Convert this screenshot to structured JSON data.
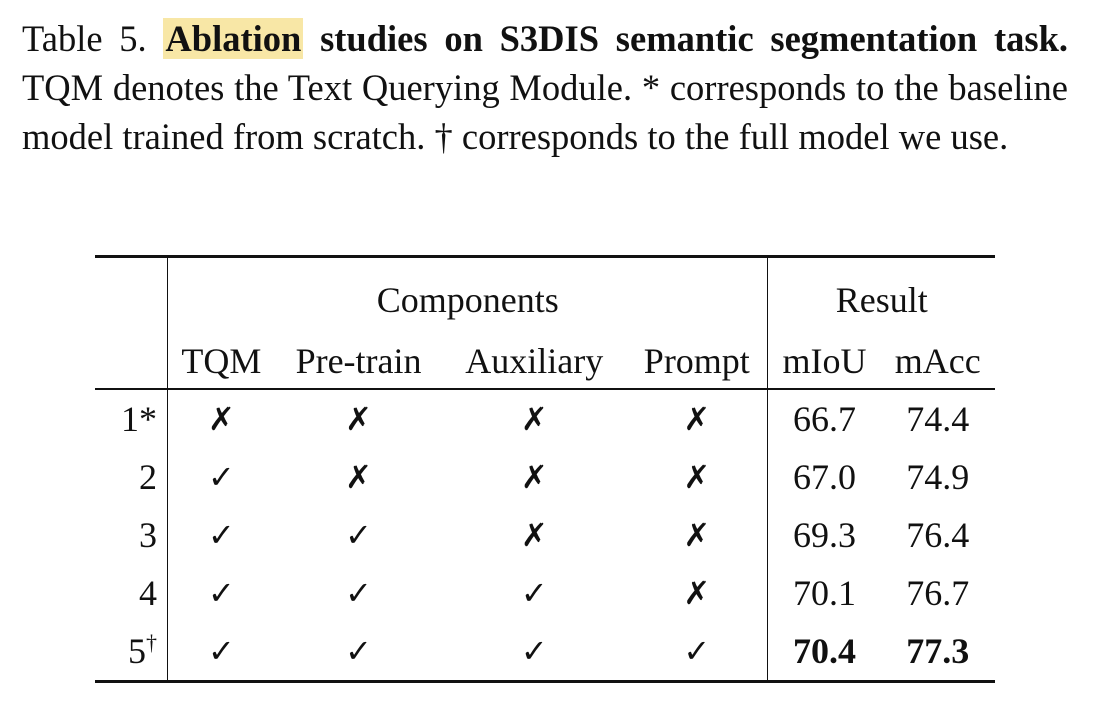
{
  "caption": {
    "label": "Table 5.",
    "highlight": "Ablation",
    "bold_rest": " studies on S3DIS semantic segmentation task.",
    "text": " TQM denotes the Text Querying Module.  * corresponds to the baseline model trained from scratch.  † corresponds to the full model we use."
  },
  "table": {
    "group_headers": {
      "components": "Components",
      "result": "Result"
    },
    "columns": [
      "TQM",
      "Pre-train",
      "Auxiliary",
      "Prompt",
      "mIoU",
      "mAcc"
    ],
    "rows": [
      {
        "id": "1",
        "sup": "*",
        "tqm": "✗",
        "pretrain": "✗",
        "auxiliary": "✗",
        "prompt": "✗",
        "miou": "66.7",
        "macc": "74.4"
      },
      {
        "id": "2",
        "sup": "",
        "tqm": "✓",
        "pretrain": "✗",
        "auxiliary": "✗",
        "prompt": "✗",
        "miou": "67.0",
        "macc": "74.9"
      },
      {
        "id": "3",
        "sup": "",
        "tqm": "✓",
        "pretrain": "✓",
        "auxiliary": "✗",
        "prompt": "✗",
        "miou": "69.3",
        "macc": "76.4"
      },
      {
        "id": "4",
        "sup": "",
        "tqm": "✓",
        "pretrain": "✓",
        "auxiliary": "✓",
        "prompt": "✗",
        "miou": "70.1",
        "macc": "76.7"
      },
      {
        "id": "5",
        "sup": "†",
        "tqm": "✓",
        "pretrain": "✓",
        "auxiliary": "✓",
        "prompt": "✓",
        "miou": "70.4",
        "macc": "77.3"
      }
    ]
  }
}
